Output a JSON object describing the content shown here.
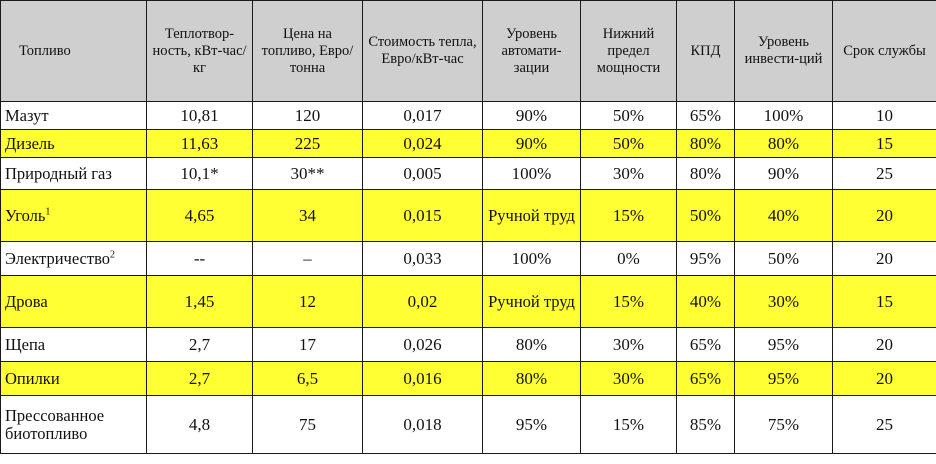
{
  "table": {
    "headers": [
      "Топливо",
      "Теплотвор-ность, кВт-час/кг",
      "Цена на топливо, Евро/тонна",
      "Стоимость тепла, Евро/кВт-час",
      "Уровень автомати-зации",
      "Нижний предел мощности",
      "КПД",
      "Уровень инвести-ций",
      "Срок службы"
    ],
    "rows": [
      {
        "fuel": "Мазут",
        "note": "",
        "cells": [
          "10,81",
          "120",
          "0,017",
          "90%",
          "50%",
          "65%",
          "100%",
          "10"
        ]
      },
      {
        "fuel": "Дизель",
        "note": "",
        "cells": [
          "11,63",
          "225",
          "0,024",
          "90%",
          "50%",
          "80%",
          "80%",
          "15"
        ]
      },
      {
        "fuel": "Природный газ",
        "note": "",
        "cells": [
          "10,1*",
          "30**",
          "0,005",
          "100%",
          "30%",
          "80%",
          "90%",
          "25"
        ]
      },
      {
        "fuel": "Уголь",
        "note": "1",
        "cells": [
          "4,65",
          "34",
          "0,015",
          "Ручной труд",
          "15%",
          "50%",
          "40%",
          "20"
        ]
      },
      {
        "fuel": "Электричество",
        "note": "2",
        "cells": [
          "--",
          "–",
          "0,033",
          "100%",
          "0%",
          "95%",
          "50%",
          "20"
        ]
      },
      {
        "fuel": "Дрова",
        "note": "",
        "cells": [
          "1,45",
          "12",
          "0,02",
          "Ручной труд",
          "15%",
          "40%",
          "30%",
          "15"
        ]
      },
      {
        "fuel": "Щепа",
        "note": "",
        "cells": [
          "2,7",
          "17",
          "0,026",
          "80%",
          "30%",
          "65%",
          "95%",
          "20"
        ]
      },
      {
        "fuel": "Опилки",
        "note": "",
        "cells": [
          "2,7",
          "6,5",
          "0,016",
          "80%",
          "30%",
          "65%",
          "95%",
          "20"
        ]
      },
      {
        "fuel": "Прессованное биотопливо",
        "note": "",
        "cells": [
          "4,8",
          "75",
          "0,018",
          "95%",
          "15%",
          "85%",
          "75%",
          "25"
        ]
      }
    ]
  },
  "colors": {
    "header_bg": "#cfcfcf",
    "highlight": "#ffff33",
    "border": "#1a1a1a"
  }
}
